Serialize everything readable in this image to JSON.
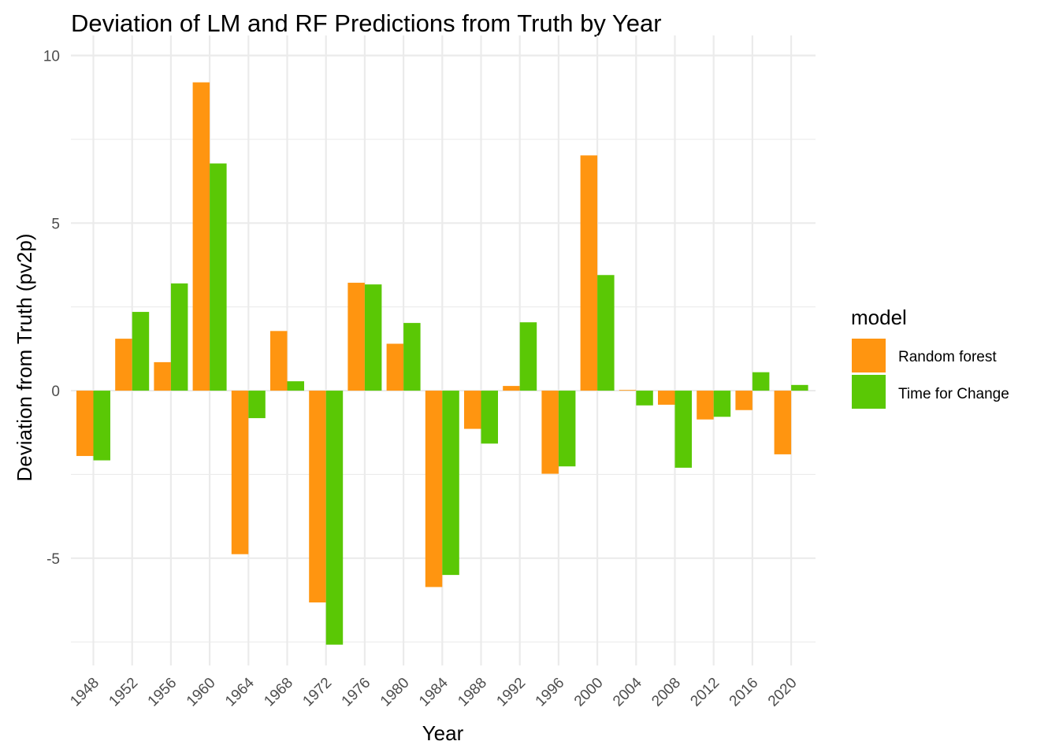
{
  "chart_data": {
    "type": "bar",
    "title": "Deviation of LM and RF Predictions from Truth by Year",
    "xlabel": "Year",
    "ylabel": "Deviation from Truth (pv2p)",
    "categories": [
      "1948",
      "1952",
      "1956",
      "1960",
      "1964",
      "1968",
      "1972",
      "1976",
      "1980",
      "1984",
      "1988",
      "1992",
      "1996",
      "2000",
      "2004",
      "2008",
      "2012",
      "2016",
      "2020"
    ],
    "series": [
      {
        "name": "Random forest",
        "color": "#ff9510",
        "values": [
          -1.95,
          1.55,
          0.85,
          9.2,
          -4.88,
          1.78,
          -6.32,
          3.22,
          1.4,
          -5.86,
          -1.14,
          0.14,
          -2.48,
          7.02,
          0.02,
          -0.42,
          -0.86,
          -0.58,
          -1.9
        ]
      },
      {
        "name": "Time for Change",
        "color": "#5ac805",
        "values": [
          -2.08,
          2.35,
          3.2,
          6.78,
          -0.82,
          0.28,
          -7.58,
          3.17,
          2.02,
          -5.5,
          -1.58,
          2.04,
          -2.26,
          3.45,
          -0.44,
          -2.3,
          -0.78,
          0.55,
          0.17
        ]
      }
    ],
    "ylim": [
      -8.2,
      10.6
    ],
    "yticks": [
      "-5",
      "0",
      "5",
      "10"
    ],
    "grid": true,
    "legend": {
      "title": "model",
      "position": "right"
    }
  }
}
